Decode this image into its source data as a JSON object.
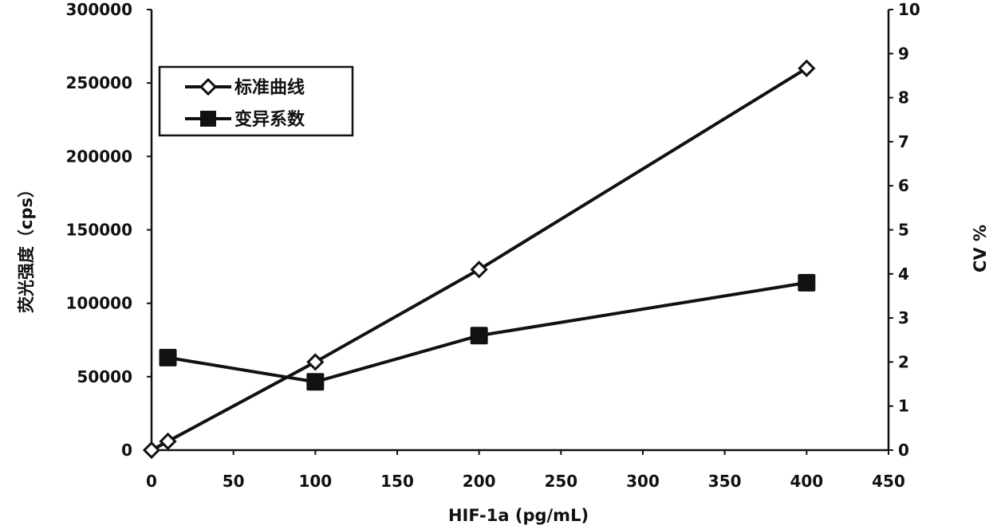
{
  "chart_data": {
    "type": "line",
    "xlabel": "HIF-1a (pg/mL)",
    "ylabel": "荧光强度（cps）",
    "y2label": "CV %",
    "xlim": [
      0,
      450
    ],
    "ylim": [
      0,
      300000
    ],
    "y2lim": [
      0,
      10
    ],
    "x_ticks": [
      "0",
      "50",
      "100",
      "150",
      "200",
      "250",
      "300",
      "350",
      "400",
      "450"
    ],
    "y_ticks": [
      "0",
      "50000",
      "100000",
      "150000",
      "200000",
      "250000",
      "300000"
    ],
    "y2_ticks": [
      "0",
      "1",
      "2",
      "3",
      "4",
      "5",
      "6",
      "7",
      "8",
      "9",
      "10"
    ],
    "grid": false,
    "legend_position": "top-left",
    "series": [
      {
        "name": "标准曲线",
        "axis": "left",
        "marker": "open-diamond",
        "x": [
          0,
          10,
          100,
          200,
          400
        ],
        "y": [
          0,
          6000,
          60000,
          123000,
          260000
        ]
      },
      {
        "name": "变异系数",
        "axis": "right",
        "marker": "filled-square",
        "x": [
          10,
          100,
          200,
          400
        ],
        "y": [
          2.1,
          1.55,
          2.6,
          3.8
        ]
      }
    ],
    "colors": {
      "line": "#111111",
      "background": "#ffffff"
    }
  }
}
